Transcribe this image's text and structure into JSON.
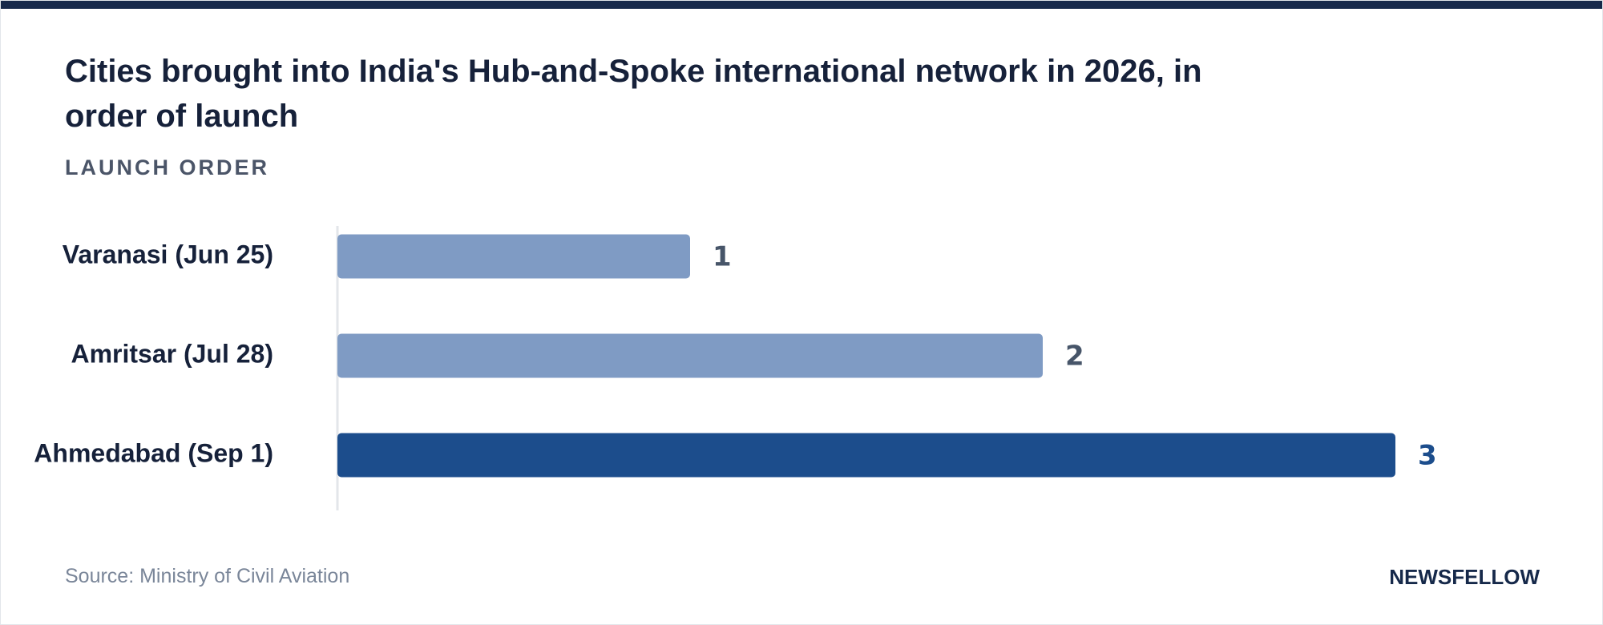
{
  "chart_data": {
    "type": "bar",
    "orientation": "horizontal",
    "title": "Cities brought into India's Hub-and-Spoke international network in 2026, in order of launch",
    "subtitle": "LAUNCH ORDER",
    "categories": [
      "Varanasi (Jun 25)",
      "Amritsar (Jul 28)",
      "Ahmedabad (Sep 1)"
    ],
    "values": [
      1,
      2,
      3
    ],
    "colors": [
      "#7f9bc4",
      "#7f9bc4",
      "#1c4d8c"
    ],
    "value_label_colors": [
      "#475569",
      "#475569",
      "#1c4d8c"
    ],
    "xlim": [
      0,
      3
    ],
    "source": "Source: Ministry of Civil Aviation",
    "brand": "NEWSFELLOW"
  }
}
